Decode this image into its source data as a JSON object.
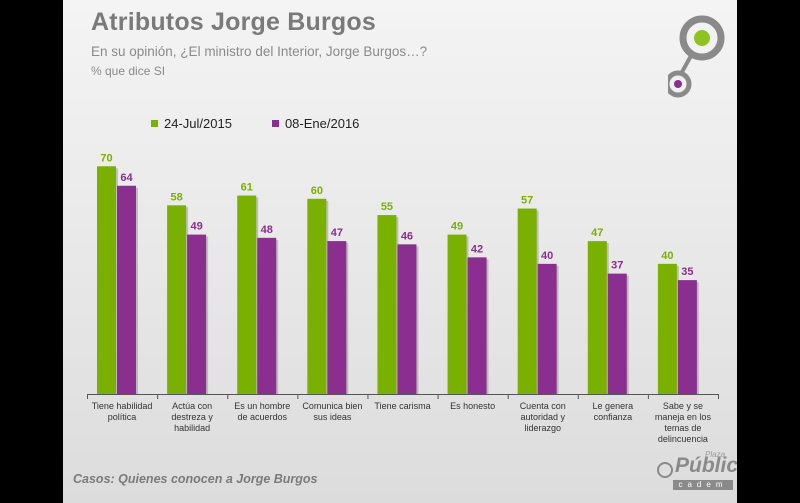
{
  "header": {
    "title": "Atributos Jorge Burgos",
    "subtitle": "En su opinión, ¿El ministro del Interior, Jorge Burgos…?",
    "note": "% que dice SI"
  },
  "footer": {
    "text": "Casos: Quienes conocen a Jorge Burgos"
  },
  "brand": {
    "main": "Pública",
    "plaza": "Plaza",
    "cadem": "cadem"
  },
  "colors": {
    "green": "#7ab000",
    "purple": "#8a2e8f"
  },
  "chart_data": {
    "type": "bar",
    "title": "Atributos Jorge Burgos",
    "ylim": [
      0,
      75
    ],
    "grid": false,
    "legend": "top-left",
    "categories": [
      [
        "Tiene habilidad",
        "política"
      ],
      [
        "Actúa con",
        "destreza y",
        "habilidad"
      ],
      [
        "Es un hombre",
        "de acuerdos"
      ],
      [
        "Comunica bien",
        "sus ideas"
      ],
      [
        "Tiene carisma"
      ],
      [
        "Es honesto"
      ],
      [
        "Cuenta con",
        "autoridad y",
        "liderazgo"
      ],
      [
        "Le genera",
        "confianza"
      ],
      [
        "Sabe y se",
        "maneja en los",
        "temas de",
        "delincuencia"
      ]
    ],
    "series": [
      {
        "name": "24-Jul/2015",
        "color": "#7ab000",
        "values": [
          70,
          58,
          61,
          60,
          55,
          49,
          57,
          47,
          40
        ]
      },
      {
        "name": "08-Ene/2016",
        "color": "#8a2e8f",
        "values": [
          64,
          49,
          48,
          47,
          46,
          42,
          40,
          37,
          35
        ]
      }
    ]
  }
}
